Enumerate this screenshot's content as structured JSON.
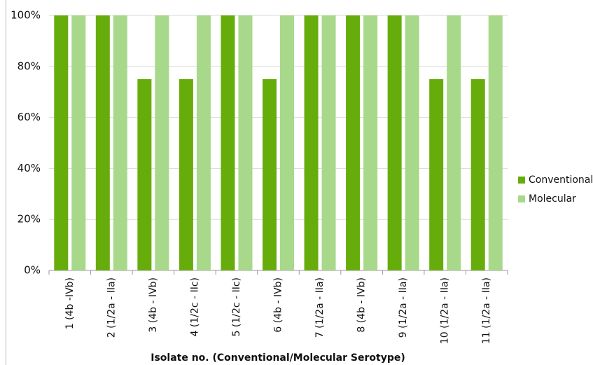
{
  "chart_data": {
    "type": "bar",
    "x_label": "Isolate no. (Conventional/Molecular Serotype)",
    "categories": [
      "1 (4b -IVb)",
      "2 (1/2a - IIa)",
      "3 (4b - IVb)",
      "4 (1/2c - IIc)",
      "5 (1/2c - IIc)",
      "6 (4b - IVb)",
      "7 (1/2a - IIa)",
      "8 (4b - IVb)",
      "9 (1/2a - IIa)",
      "10 (1/2a - IIa)",
      "11 (1/2a - IIa)"
    ],
    "series": [
      {
        "name": "Conventional",
        "color": "#66ad0c",
        "values": [
          100,
          100,
          75,
          75,
          100,
          75,
          100,
          100,
          100,
          75,
          75
        ]
      },
      {
        "name": "Molecular",
        "color": "#a8d88a",
        "values": [
          100,
          100,
          100,
          100,
          100,
          100,
          100,
          100,
          100,
          100,
          100
        ]
      }
    ],
    "ylim": [
      0,
      100
    ],
    "yticks": [
      {
        "value": 0,
        "label": "0%"
      },
      {
        "value": 20,
        "label": "20%"
      },
      {
        "value": 40,
        "label": "40%"
      },
      {
        "value": 60,
        "label": "60%"
      },
      {
        "value": 80,
        "label": "80%"
      },
      {
        "value": 100,
        "label": "100%"
      }
    ],
    "grid": true,
    "legend": "right"
  }
}
